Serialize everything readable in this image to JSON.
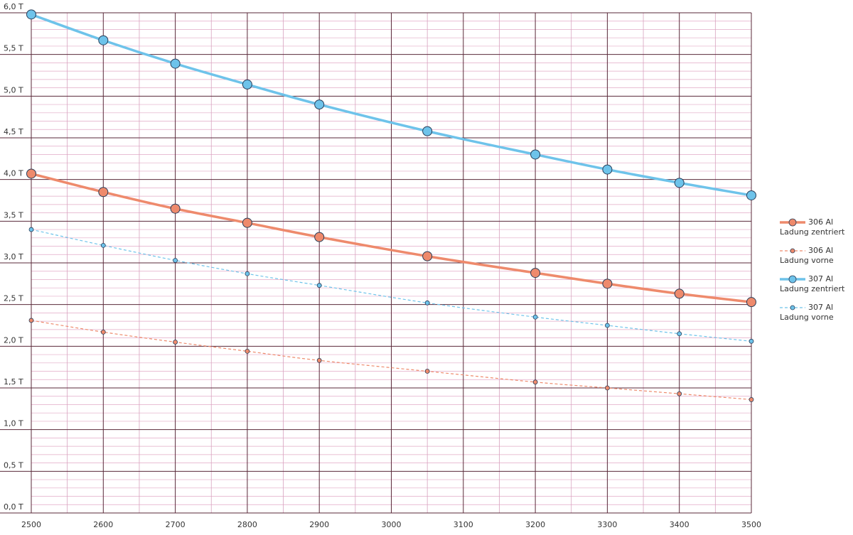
{
  "chart_data": {
    "type": "line",
    "x": [
      2500,
      2600,
      2700,
      2800,
      2900,
      3050,
      3200,
      3300,
      3400,
      3500
    ],
    "series": [
      {
        "name": "306 Al\nLadung zentriert",
        "color": "#ee8a6c",
        "dashed": false,
        "values": [
          4.07,
          3.85,
          3.65,
          3.48,
          3.31,
          3.08,
          2.88,
          2.75,
          2.63,
          2.53
        ]
      },
      {
        "name": "306 Al\nLadung vorne",
        "color": "#ee8a6c",
        "dashed": true,
        "values": [
          2.31,
          2.17,
          2.05,
          1.94,
          1.83,
          1.7,
          1.57,
          1.5,
          1.43,
          1.36
        ]
      },
      {
        "name": "307 Al\nLadung zentriert",
        "color": "#6ec3ea",
        "dashed": false,
        "values": [
          5.98,
          5.67,
          5.39,
          5.14,
          4.9,
          4.58,
          4.3,
          4.12,
          3.96,
          3.81
        ]
      },
      {
        "name": "307 Al\nLadung vorne",
        "color": "#6ec3ea",
        "dashed": true,
        "values": [
          3.4,
          3.21,
          3.03,
          2.87,
          2.73,
          2.52,
          2.35,
          2.25,
          2.15,
          2.06
        ]
      }
    ],
    "xlim": [
      2500,
      3500
    ],
    "xticks": [
      2500,
      2600,
      2700,
      2800,
      2900,
      3000,
      3100,
      3200,
      3300,
      3400,
      3500
    ],
    "ylim": [
      0,
      6
    ],
    "yticks": [
      {
        "value": 0,
        "label": "0,0 T"
      },
      {
        "value": 0.5,
        "label": "0,5 T"
      },
      {
        "value": 1,
        "label": "1,0 T"
      },
      {
        "value": 1.5,
        "label": "1,5 T"
      },
      {
        "value": 2,
        "label": "2,0 T"
      },
      {
        "value": 2.5,
        "label": "2,5 T"
      },
      {
        "value": 3,
        "label": "3,0 T"
      },
      {
        "value": 3.5,
        "label": "3,5 T"
      },
      {
        "value": 4,
        "label": "4,0 T"
      },
      {
        "value": 4.5,
        "label": "4,5 T"
      },
      {
        "value": 5,
        "label": "5,0 T"
      },
      {
        "value": 5.5,
        "label": "5,5 T"
      },
      {
        "value": 6,
        "label": "6,0 T"
      }
    ],
    "grid": true
  }
}
